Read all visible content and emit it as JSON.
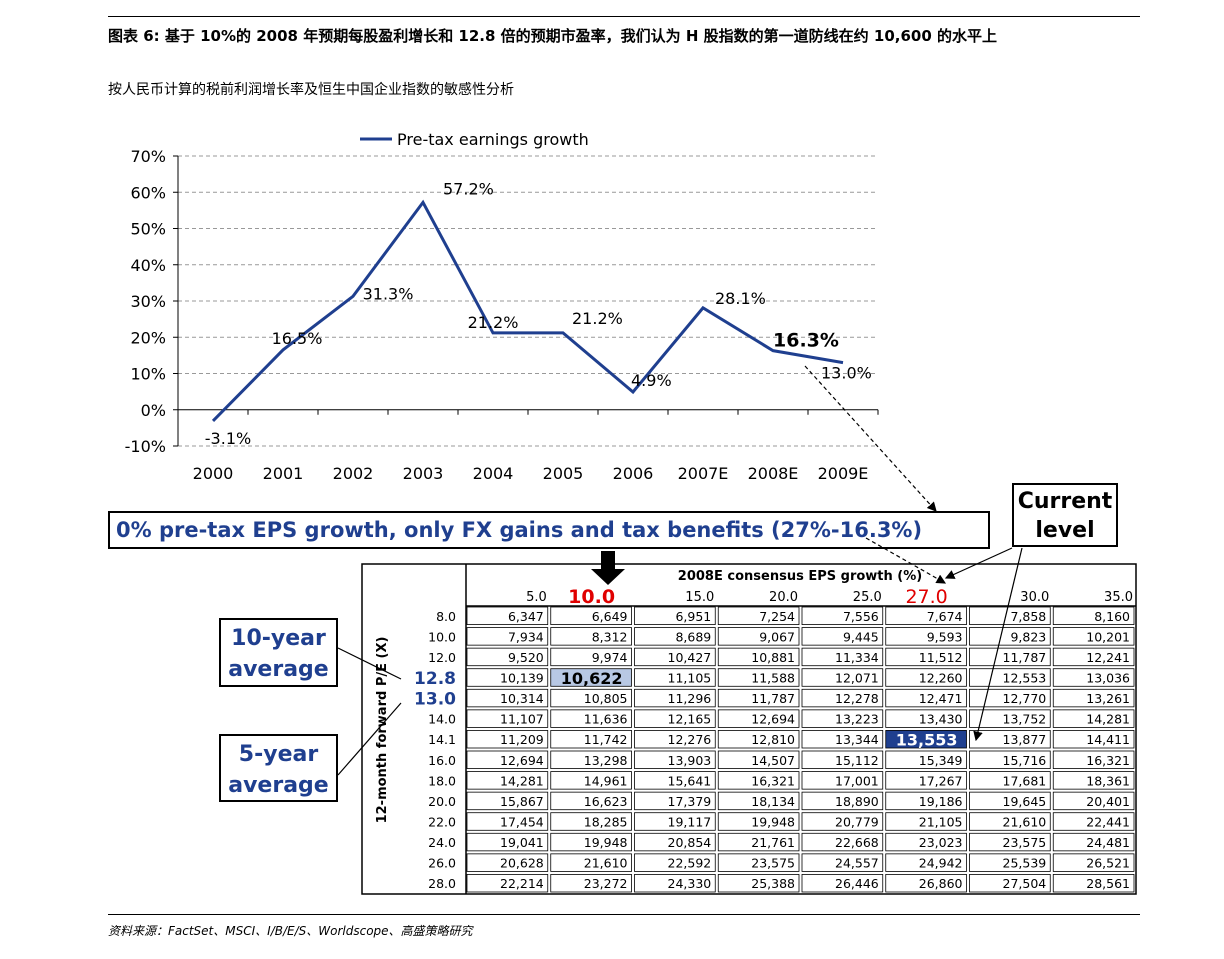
{
  "header": {
    "figure_title": "图表 6:    基于 10%的 2008 年预期每股盈利增长和 12.8 倍的预期市盈率，我们认为 H 股指数的第一道防线在约 10,600 的水平上",
    "figure_subtitle": "按人民币计算的税前利润增长率及恒生中国企业指数的敏感性分析"
  },
  "footer": {
    "source": "资料来源：FactSet、MSCI、I/B/E/S、Worldscope、高盛策略研究"
  },
  "callouts": {
    "banner": "0% pre-tax EPS growth, only FX gains and tax benefits (27%-16.3%)",
    "current_line1": "Current",
    "current_line2": "level",
    "ten_year_line1": "10-year",
    "ten_year_line2": "average",
    "five_year_line1": "5-year",
    "five_year_line2": "average"
  },
  "chart_data": [
    {
      "type": "line",
      "legend": "Pre-tax earnings growth",
      "legend_position": "top",
      "categories": [
        "2000",
        "2001",
        "2002",
        "2003",
        "2004",
        "2005",
        "2006",
        "2007E",
        "2008E",
        "2009E"
      ],
      "series": [
        {
          "name": "Pre-tax earnings growth",
          "values": [
            -3.1,
            16.5,
            31.3,
            57.2,
            21.2,
            21.2,
            4.9,
            28.1,
            16.3,
            13.0
          ]
        }
      ],
      "data_labels": [
        "-3.1%",
        "16.5%",
        "31.3%",
        "57.2%",
        "21.2%",
        "21.2%",
        "4.9%",
        "28.1%",
        "16.3%",
        "13.0%"
      ],
      "y_ticks": [
        "70%",
        "60%",
        "50%",
        "40%",
        "30%",
        "20%",
        "10%",
        "0%",
        "-10%"
      ],
      "ylim": [
        -10,
        70
      ],
      "grid": "dashed-horizontal",
      "color": "#1f3f8f"
    },
    {
      "type": "table",
      "col_header": "2008E consensus EPS growth (%)",
      "row_header": "12-month forward P/E (X)",
      "columns": [
        "5.0",
        "10.0",
        "15.0",
        "20.0",
        "25.0",
        "27.0",
        "30.0",
        "35.0"
      ],
      "highlight_columns": [
        "10.0",
        "27.0"
      ],
      "rows": [
        {
          "pe": "8.0",
          "values": [
            "6,347",
            "6,649",
            "6,951",
            "7,254",
            "7,556",
            "7,674",
            "7,858",
            "8,160"
          ]
        },
        {
          "pe": "10.0",
          "values": [
            "7,934",
            "8,312",
            "8,689",
            "9,067",
            "9,445",
            "9,593",
            "9,823",
            "10,201"
          ]
        },
        {
          "pe": "12.0",
          "values": [
            "9,520",
            "9,974",
            "10,427",
            "10,881",
            "11,334",
            "11,512",
            "11,787",
            "12,241"
          ]
        },
        {
          "pe": "12.8",
          "values": [
            "10,139",
            "10,622",
            "11,105",
            "11,588",
            "12,071",
            "12,260",
            "12,553",
            "13,036"
          ]
        },
        {
          "pe": "13.0",
          "values": [
            "10,314",
            "10,805",
            "11,296",
            "11,787",
            "12,278",
            "12,471",
            "12,770",
            "13,261"
          ]
        },
        {
          "pe": "14.0",
          "values": [
            "11,107",
            "11,636",
            "12,165",
            "12,694",
            "13,223",
            "13,430",
            "13,752",
            "14,281"
          ]
        },
        {
          "pe": "14.1",
          "values": [
            "11,209",
            "11,742",
            "12,276",
            "12,810",
            "13,344",
            "13,553",
            "13,877",
            "14,411"
          ]
        },
        {
          "pe": "16.0",
          "values": [
            "12,694",
            "13,298",
            "13,903",
            "14,507",
            "15,112",
            "15,349",
            "15,716",
            "16,321"
          ]
        },
        {
          "pe": "18.0",
          "values": [
            "14,281",
            "14,961",
            "15,641",
            "16,321",
            "17,001",
            "17,267",
            "17,681",
            "18,361"
          ]
        },
        {
          "pe": "20.0",
          "values": [
            "15,867",
            "16,623",
            "17,379",
            "18,134",
            "18,890",
            "19,186",
            "19,645",
            "20,401"
          ]
        },
        {
          "pe": "22.0",
          "values": [
            "17,454",
            "18,285",
            "19,117",
            "19,948",
            "20,779",
            "21,105",
            "21,610",
            "22,441"
          ]
        },
        {
          "pe": "24.0",
          "values": [
            "19,041",
            "19,948",
            "20,854",
            "21,761",
            "22,668",
            "23,023",
            "23,575",
            "24,481"
          ]
        },
        {
          "pe": "26.0",
          "values": [
            "20,628",
            "21,610",
            "22,592",
            "23,575",
            "24,557",
            "24,942",
            "25,539",
            "26,521"
          ]
        },
        {
          "pe": "28.0",
          "values": [
            "22,214",
            "23,272",
            "24,330",
            "25,388",
            "26,446",
            "26,860",
            "27,504",
            "28,561"
          ]
        }
      ],
      "highlight_cells": [
        {
          "pe": "12.8",
          "column": "10.0",
          "style": "light-blue"
        },
        {
          "pe": "14.1",
          "column": "27.0",
          "style": "dark-blue"
        }
      ],
      "emphasized_rows": [
        "12.8",
        "13.0"
      ],
      "colors": {
        "light": "#b8c8e4",
        "dark": "#1f3f8f",
        "red": "#e00000"
      }
    }
  ]
}
